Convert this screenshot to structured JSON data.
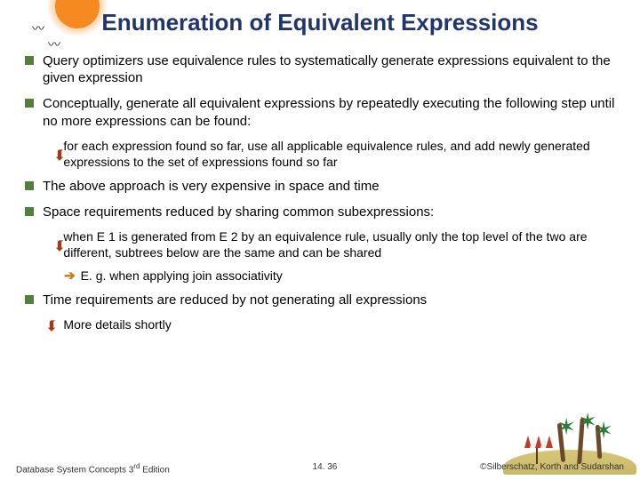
{
  "colors": {
    "title": "#20356e",
    "bullet_square": "#50803c",
    "arrow_down": "#a33a1a",
    "arrow_right": "#c97a18",
    "sun": "#f58a22",
    "umbrella_a": "#c43a2a",
    "umbrella_b": "#f2f2f2"
  },
  "title": "Enumeration of Equivalent Expressions",
  "bullets": [
    {
      "level": 1,
      "text": "Query optimizers use equivalence rules to systematically generate expressions equivalent to the given expression"
    },
    {
      "level": 1,
      "text": "Conceptually, generate all equivalent expressions by repeatedly executing the following step until no more expressions can be found:"
    },
    {
      "level": 2,
      "text": "for each expression found so far, use all applicable equivalence rules, and add newly generated expressions to the set of expressions found so far"
    },
    {
      "level": 1,
      "text": "The above approach is very expensive in space and time"
    },
    {
      "level": 1,
      "text": "Space requirements reduced by sharing common subexpressions:"
    },
    {
      "level": 2,
      "text": "when E 1 is generated from E 2 by an equivalence rule, usually only the top level of the two are different, subtrees below are the same and can be shared"
    },
    {
      "level": 3,
      "text": "E. g. when applying join associativity"
    },
    {
      "level": 1,
      "text": "Time requirements are reduced by not generating all expressions"
    },
    {
      "level": 2,
      "text": "More details shortly"
    }
  ],
  "footer": {
    "left_a": "Database System Concepts 3",
    "left_b": "rd",
    "left_c": " Edition",
    "center": "14. 36",
    "right": "©Silberschatz, Korth and Sudarshan"
  }
}
